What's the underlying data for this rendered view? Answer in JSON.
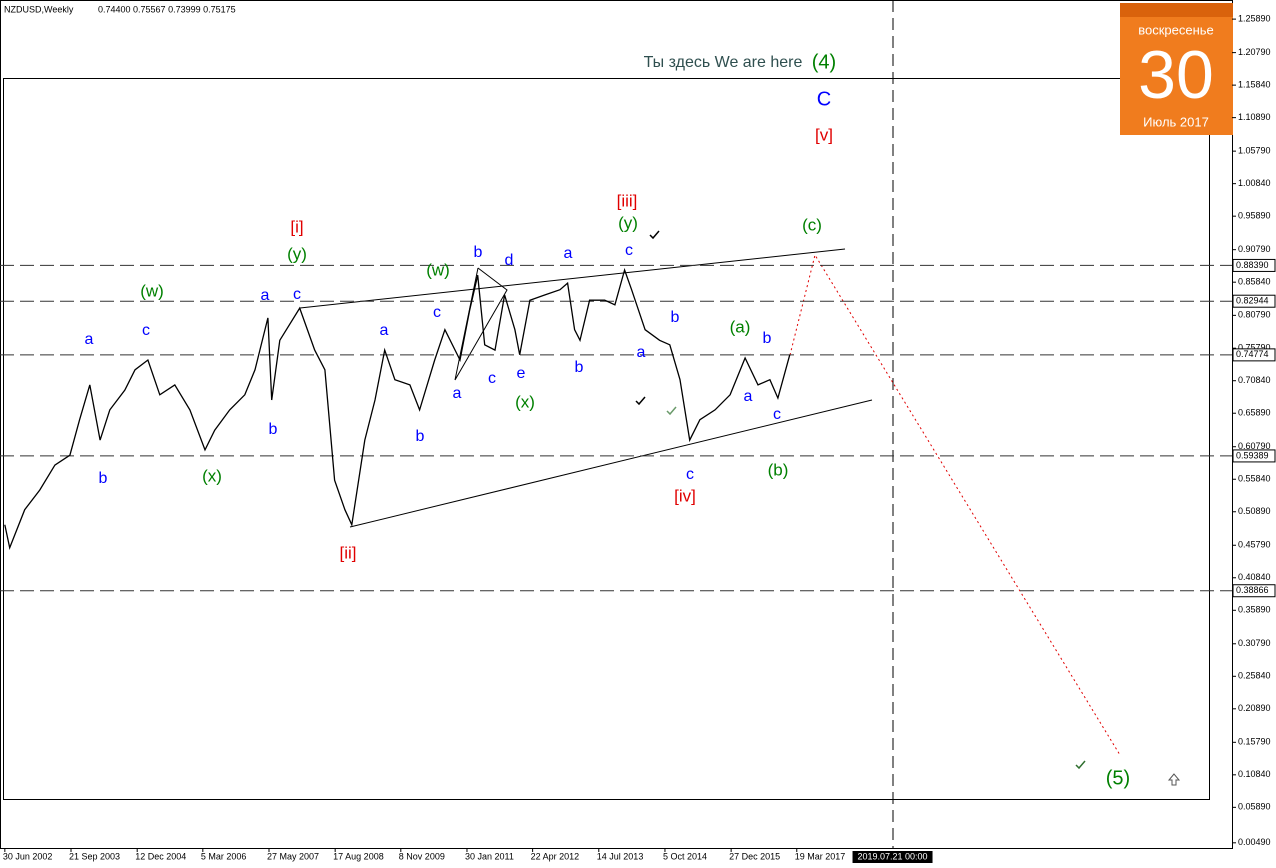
{
  "chart_data": {
    "type": "line",
    "title": "NZDUSD,Weekly",
    "quote": "0.74400 0.75567 0.73999 0.75175",
    "series": [
      {
        "name": "NZDUSD",
        "color": "#000000",
        "x": [
          2002.49,
          2002.58,
          2002.86,
          2003.14,
          2003.42,
          2003.7,
          2003.88,
          2004.07,
          2004.26,
          2004.44,
          2004.72,
          2004.91,
          2005.15,
          2005.37,
          2005.65,
          2005.93,
          2006.21,
          2006.39,
          2006.67,
          2006.95,
          2007.14,
          2007.38,
          2007.45,
          2007.6,
          2007.97,
          2008.25,
          2008.44,
          2008.62,
          2008.81,
          2008.94,
          2009.18,
          2009.37,
          2009.55,
          2009.74,
          2010.02,
          2010.2,
          2010.48,
          2010.67,
          2010.95,
          2011.13,
          2011.28,
          2011.41,
          2011.6,
          2011.78,
          2011.97,
          2012.06,
          2012.25,
          2012.53,
          2012.81,
          2012.95,
          2013.08,
          2013.18,
          2013.36,
          2013.64,
          2013.83,
          2014.01,
          2014.14,
          2014.39,
          2014.66,
          2014.85,
          2015.04,
          2015.22,
          2015.41,
          2015.69,
          2015.97,
          2016.25,
          2016.49,
          2016.71,
          2016.86,
          2017.08
        ],
        "values": [
          0.489,
          0.454,
          0.512,
          0.542,
          0.58,
          0.595,
          0.649,
          0.702,
          0.618,
          0.664,
          0.694,
          0.725,
          0.74,
          0.687,
          0.702,
          0.664,
          0.603,
          0.633,
          0.664,
          0.687,
          0.725,
          0.804,
          0.679,
          0.77,
          0.819,
          0.755,
          0.725,
          0.557,
          0.512,
          0.489,
          0.618,
          0.679,
          0.755,
          0.71,
          0.702,
          0.664,
          0.74,
          0.786,
          0.74,
          0.816,
          0.869,
          0.763,
          0.755,
          0.839,
          0.786,
          0.748,
          0.831,
          0.839,
          0.847,
          0.857,
          0.786,
          0.77,
          0.831,
          0.831,
          0.824,
          0.877,
          0.847,
          0.786,
          0.77,
          0.763,
          0.71,
          0.618,
          0.649,
          0.664,
          0.687,
          0.743,
          0.702,
          0.71,
          0.682,
          0.748
        ]
      }
    ],
    "xlim": [
      2002.4,
      2025.3
    ],
    "ylim": [
      -0.003,
      1.288
    ],
    "xticks": [
      {
        "value": 2002.49,
        "label": "30 Jun 2002"
      },
      {
        "value": 2003.72,
        "label": "21 Sep 2003"
      },
      {
        "value": 2004.95,
        "label": "12 Dec 2004"
      },
      {
        "value": 2006.17,
        "label": "5 Mar 2006"
      },
      {
        "value": 2007.4,
        "label": "27 May 2007"
      },
      {
        "value": 2008.63,
        "label": "17 Aug 2008"
      },
      {
        "value": 2009.85,
        "label": "8 Nov 2009"
      },
      {
        "value": 2011.08,
        "label": "30 Jan 2011"
      },
      {
        "value": 2012.3,
        "label": "22 Apr 2012"
      },
      {
        "value": 2013.53,
        "label": "14 Jul 2013"
      },
      {
        "value": 2014.76,
        "label": "5 Oct 2014"
      },
      {
        "value": 2015.99,
        "label": "27 Dec 2015"
      },
      {
        "value": 2017.21,
        "label": "19 Mar 2017"
      }
    ],
    "time_marker": {
      "value": 2018.99,
      "label": "2019.07.21 00:00"
    },
    "yticks": [
      {
        "value": 1.2589,
        "label": "1.25890"
      },
      {
        "value": 1.2079,
        "label": "1.20790"
      },
      {
        "value": 1.1584,
        "label": "1.15840"
      },
      {
        "value": 1.1089,
        "label": "1.10890"
      },
      {
        "value": 1.0579,
        "label": "1.05790"
      },
      {
        "value": 1.0084,
        "label": "1.00840"
      },
      {
        "value": 0.9589,
        "label": "0.95890"
      },
      {
        "value": 0.9079,
        "label": "0.90790"
      },
      {
        "value": 0.8584,
        "label": "0.85840"
      },
      {
        "value": 0.8079,
        "label": "0.80790"
      },
      {
        "value": 0.7579,
        "label": "0.75790"
      },
      {
        "value": 0.7084,
        "label": "0.70840"
      },
      {
        "value": 0.6589,
        "label": "0.65890"
      },
      {
        "value": 0.6079,
        "label": "0.60790"
      },
      {
        "value": 0.5584,
        "label": "0.55840"
      },
      {
        "value": 0.5089,
        "label": "0.50890"
      },
      {
        "value": 0.4579,
        "label": "0.45790"
      },
      {
        "value": 0.4084,
        "label": "0.40840"
      },
      {
        "value": 0.3589,
        "label": "0.35890"
      },
      {
        "value": 0.3079,
        "label": "0.30790"
      },
      {
        "value": 0.2584,
        "label": "0.25840"
      },
      {
        "value": 0.2089,
        "label": "0.20890"
      },
      {
        "value": 0.1579,
        "label": "0.15790"
      },
      {
        "value": 0.1084,
        "label": "0.10840"
      },
      {
        "value": 0.0589,
        "label": "0.05890"
      },
      {
        "value": 0.0049,
        "label": "0.00490"
      }
    ],
    "levels": [
      {
        "value": 0.8839,
        "label": "0.88390"
      },
      {
        "value": 0.82944,
        "label": "0.82944"
      },
      {
        "value": 0.74774,
        "label": "0.74774"
      },
      {
        "value": 0.59389,
        "label": "0.59389"
      },
      {
        "value": 0.38866,
        "label": "0.38866"
      }
    ],
    "grid": false,
    "annotations": [
      "a",
      "c",
      "b",
      "a",
      "c",
      "b",
      "a",
      "b",
      "c",
      "a",
      "b",
      "c",
      "d",
      "e",
      "a",
      "b",
      "c",
      "a",
      "b",
      "c",
      "b",
      "a",
      "c",
      "C",
      "(w)",
      "(x)",
      "(y)",
      "(w)",
      "(x)",
      "(y)",
      "(a)",
      "(b)",
      "(c)",
      "(4)",
      "(5)",
      "[i]",
      "[ii]",
      "[iii]",
      "[iv]",
      "[v]",
      "Ты здесь We are here"
    ]
  },
  "calendar": {
    "weekday": "воскресенье",
    "day": 30,
    "month": "Июль 2017"
  }
}
